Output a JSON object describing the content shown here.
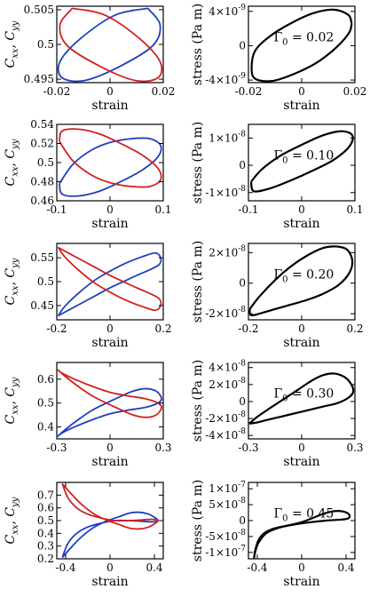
{
  "chart_data": [
    {
      "type": "line",
      "panel": "cxx-cyy",
      "row": 1,
      "xlabel": "strain",
      "ylabel": "C_xx, C_yy",
      "xlim": [
        -0.02,
        0.02
      ],
      "ylim": [
        0.4945,
        0.5055
      ],
      "xticks": [
        -0.02,
        0,
        0.02
      ],
      "xtick_labels": [
        "-0.02",
        "0",
        "0.02"
      ],
      "yticks": [
        0.495,
        0.5,
        0.505
      ],
      "ytick_labels": [
        "0.495",
        "0.5",
        "0.505"
      ],
      "series": [
        {
          "color": "#1f3fbf",
          "x": [
            0.0142,
            0.0188,
            0.016,
            0.0035,
            -0.0095,
            -0.018,
            -0.0188,
            -0.0112,
            0.0018,
            0.0142
          ],
          "y": [
            0.5052,
            0.5028,
            0.4998,
            0.4968,
            0.4948,
            0.4952,
            0.4975,
            0.5008,
            0.5042,
            0.5052
          ]
        },
        {
          "color": "#d32020",
          "x": [
            -0.0142,
            -0.0188,
            -0.016,
            -0.0035,
            0.0095,
            0.018,
            0.0188,
            0.0112,
            -0.0018,
            -0.0142
          ],
          "y": [
            0.5052,
            0.5028,
            0.4998,
            0.4968,
            0.4948,
            0.4952,
            0.4975,
            0.5008,
            0.5042,
            0.5052
          ]
        }
      ]
    },
    {
      "type": "line",
      "panel": "stress",
      "row": 1,
      "xlabel": "strain",
      "ylabel": "stress (Pa m)",
      "xlim": [
        -0.02,
        0.02
      ],
      "ylim": [
        -4.3e-09,
        4.6e-09
      ],
      "xticks": [
        -0.02,
        0,
        0.02
      ],
      "xtick_labels": [
        "-0.02",
        "0",
        "0.02"
      ],
      "yticks": [
        -4e-09,
        0,
        4e-09
      ],
      "ytick_labels": [
        [
          "-4×10",
          "-9"
        ],
        [
          "0",
          ""
        ],
        [
          "4×10",
          "-9"
        ]
      ],
      "annotation": {
        "text": "Γ",
        "sub": "0",
        "value": " = 0.02"
      },
      "series": [
        {
          "color": "#000000",
          "x": [
            0.0188,
            0.0175,
            0.012,
            0.0045,
            -0.0035,
            -0.0115,
            -0.0175,
            -0.0188,
            -0.0172,
            -0.011,
            -0.003,
            0.0055,
            0.013,
            0.0178,
            0.0188
          ],
          "y": [
            2.6e-09,
            3.6e-09,
            4.2e-09,
            3.8e-09,
            2.7e-09,
            1.2e-09,
            -6e-10,
            -2.8e-09,
            -3.9e-09,
            -4.1e-09,
            -3.3e-09,
            -2e-09,
            -2e-10,
            1.5e-09,
            2.6e-09
          ]
        }
      ]
    },
    {
      "type": "line",
      "panel": "cxx-cyy",
      "row": 2,
      "xlabel": "strain",
      "ylabel": "C_xx, C_yy",
      "xlim": [
        -0.1,
        0.1
      ],
      "ylim": [
        0.46,
        0.54
      ],
      "xticks": [
        -0.1,
        0,
        0.1
      ],
      "xtick_labels": [
        "-0.1",
        "0",
        "0.1"
      ],
      "yticks": [
        0.46,
        0.48,
        0.5,
        0.52,
        0.54
      ],
      "ytick_labels": [
        "0.46",
        "0.48",
        "0.5",
        "0.52",
        "0.54"
      ],
      "series": [
        {
          "color": "#1f3fbf",
          "x": [
            -0.095,
            -0.07,
            -0.035,
            0.0,
            0.04,
            0.075,
            0.095,
            0.09,
            0.06,
            0.02,
            -0.02,
            -0.06,
            -0.09,
            -0.095
          ],
          "y": [
            0.478,
            0.498,
            0.513,
            0.521,
            0.525,
            0.525,
            0.518,
            0.506,
            0.492,
            0.48,
            0.47,
            0.465,
            0.467,
            0.478
          ]
        },
        {
          "color": "#d32020",
          "x": [
            -0.095,
            -0.07,
            -0.035,
            0.0,
            0.04,
            0.075,
            0.095,
            0.09,
            0.06,
            0.02,
            -0.02,
            -0.06,
            -0.09,
            -0.095
          ],
          "y": [
            0.522,
            0.502,
            0.487,
            0.479,
            0.475,
            0.475,
            0.482,
            0.494,
            0.508,
            0.52,
            0.53,
            0.535,
            0.533,
            0.522
          ]
        }
      ]
    },
    {
      "type": "line",
      "panel": "stress",
      "row": 2,
      "xlabel": "strain",
      "ylabel": "stress (Pa m)",
      "xlim": [
        -0.1,
        0.1
      ],
      "ylim": [
        -1.3e-08,
        1.5e-08
      ],
      "xticks": [
        -0.1,
        0,
        0.1
      ],
      "xtick_labels": [
        "-0.1",
        "0",
        "0.1"
      ],
      "yticks": [
        -1e-08,
        0,
        1e-08
      ],
      "ytick_labels": [
        [
          "-1×10",
          "-8"
        ],
        [
          "0",
          ""
        ],
        [
          "1×10",
          "-8"
        ]
      ],
      "annotation": {
        "text": "Γ",
        "sub": "0",
        "value": " = 0.10"
      },
      "series": [
        {
          "color": "#000000",
          "x": [
            -0.095,
            -0.075,
            -0.04,
            0.0,
            0.04,
            0.075,
            0.095,
            0.09,
            0.06,
            0.02,
            -0.02,
            -0.06,
            -0.09,
            -0.095
          ],
          "y": [
            -6e-09,
            -1.5e-09,
            3.5e-09,
            7.5e-09,
            1.1e-08,
            1.25e-08,
            1.1e-08,
            7e-09,
            2e-09,
            -2e-09,
            -5.5e-09,
            -8.5e-09,
            -9.5e-09,
            -6e-09
          ]
        }
      ]
    },
    {
      "type": "line",
      "panel": "cxx-cyy",
      "row": 3,
      "xlabel": "strain",
      "ylabel": "C_xx, C_yy",
      "xlim": [
        -0.2,
        0.2
      ],
      "ylim": [
        0.42,
        0.58
      ],
      "xticks": [
        -0.2,
        0,
        0.2
      ],
      "xtick_labels": [
        "-0.2",
        "0",
        "0.2"
      ],
      "yticks": [
        0.45,
        0.5,
        0.55
      ],
      "ytick_labels": [
        "0.45",
        "0.5",
        "0.55"
      ],
      "series": [
        {
          "color": "#1f3fbf",
          "x": [
            -0.195,
            -0.17,
            -0.12,
            -0.06,
            0.0,
            0.06,
            0.12,
            0.17,
            0.19,
            0.185,
            0.15,
            0.1,
            0.05,
            0.0,
            -0.05,
            -0.1,
            -0.15,
            -0.19,
            -0.195
          ],
          "y": [
            0.428,
            0.448,
            0.475,
            0.502,
            0.522,
            0.539,
            0.552,
            0.56,
            0.55,
            0.536,
            0.525,
            0.513,
            0.5,
            0.487,
            0.472,
            0.457,
            0.442,
            0.43,
            0.428
          ]
        },
        {
          "color": "#d32020",
          "x": [
            -0.195,
            -0.17,
            -0.12,
            -0.06,
            0.0,
            0.06,
            0.12,
            0.17,
            0.19,
            0.185,
            0.15,
            0.1,
            0.05,
            0.0,
            -0.05,
            -0.1,
            -0.15,
            -0.19,
            -0.195
          ],
          "y": [
            0.572,
            0.552,
            0.525,
            0.498,
            0.478,
            0.461,
            0.448,
            0.44,
            0.45,
            0.464,
            0.475,
            0.487,
            0.5,
            0.513,
            0.528,
            0.543,
            0.558,
            0.57,
            0.572
          ]
        }
      ]
    },
    {
      "type": "line",
      "panel": "stress",
      "row": 3,
      "xlabel": "strain",
      "ylabel": "stress (Pa m)",
      "xlim": [
        -0.2,
        0.2
      ],
      "ylim": [
        -2.4e-08,
        2.6e-08
      ],
      "xticks": [
        -0.2,
        0,
        0.2
      ],
      "xtick_labels": [
        "-0.2",
        "0",
        "0.2"
      ],
      "yticks": [
        -2e-08,
        0,
        2e-08
      ],
      "ytick_labels": [
        [
          "-2×10",
          "-8"
        ],
        [
          "0",
          ""
        ],
        [
          "2×10",
          "-8"
        ]
      ],
      "annotation": {
        "text": "Γ",
        "sub": "0",
        "value": " = 0.20"
      },
      "series": [
        {
          "color": "#000000",
          "x": [
            -0.195,
            -0.16,
            -0.1,
            -0.04,
            0.02,
            0.08,
            0.13,
            0.17,
            0.19,
            0.18,
            0.14,
            0.08,
            0.02,
            -0.04,
            -0.1,
            -0.15,
            -0.19,
            -0.195
          ],
          "y": [
            -1.7e-08,
            -9e-09,
            2e-09,
            1.1e-08,
            1.8e-08,
            2.3e-08,
            2.4e-08,
            2.2e-08,
            1.5e-08,
            7e-09,
            -1e-09,
            -7e-09,
            -1.1e-08,
            -1.4e-08,
            -1.7e-08,
            -1.95e-08,
            -2.1e-08,
            -1.7e-08
          ]
        }
      ]
    },
    {
      "type": "line",
      "panel": "cxx-cyy",
      "row": 4,
      "xlabel": "strain",
      "ylabel": "C_xx, C_yy",
      "xlim": [
        -0.3,
        0.3
      ],
      "ylim": [
        0.35,
        0.67
      ],
      "xticks": [
        -0.3,
        0,
        0.3
      ],
      "xtick_labels": [
        "-0.3",
        "0",
        "0.3"
      ],
      "yticks": [
        0.4,
        0.5,
        0.6
      ],
      "ytick_labels": [
        "0.4",
        "0.5",
        "0.6"
      ],
      "series": [
        {
          "color": "#1f3fbf",
          "x": [
            -0.295,
            -0.25,
            -0.18,
            -0.1,
            -0.02,
            0.06,
            0.13,
            0.2,
            0.26,
            0.29,
            0.27,
            0.2,
            0.1,
            0.0,
            -0.1,
            -0.2,
            -0.27,
            -0.295
          ],
          "y": [
            0.36,
            0.39,
            0.43,
            0.47,
            0.5,
            0.528,
            0.55,
            0.56,
            0.55,
            0.52,
            0.5,
            0.482,
            0.47,
            0.455,
            0.43,
            0.4,
            0.375,
            0.36
          ]
        },
        {
          "color": "#d32020",
          "x": [
            -0.295,
            -0.25,
            -0.18,
            -0.1,
            -0.02,
            0.06,
            0.13,
            0.2,
            0.26,
            0.29,
            0.27,
            0.2,
            0.1,
            0.0,
            -0.1,
            -0.2,
            -0.27,
            -0.295
          ],
          "y": [
            0.64,
            0.61,
            0.57,
            0.53,
            0.5,
            0.472,
            0.45,
            0.44,
            0.45,
            0.48,
            0.5,
            0.518,
            0.53,
            0.545,
            0.57,
            0.6,
            0.625,
            0.64
          ]
        }
      ]
    },
    {
      "type": "line",
      "panel": "stress",
      "row": 4,
      "xlabel": "strain",
      "ylabel": "stress (Pa m)",
      "xlim": [
        -0.3,
        0.3
      ],
      "ylim": [
        -4.4e-08,
        4.6e-08
      ],
      "xticks": [
        -0.3,
        0,
        0.3
      ],
      "xtick_labels": [
        "-0.3",
        "0",
        "0.3"
      ],
      "yticks": [
        -4e-08,
        -2e-08,
        0,
        2e-08,
        4e-08
      ],
      "ytick_labels": [
        [
          "-4×10",
          "-8"
        ],
        [
          "-2×10",
          "-8"
        ],
        [
          "0",
          ""
        ],
        [
          "2×10",
          "-8"
        ],
        [
          "4×10",
          "-8"
        ]
      ],
      "annotation": {
        "text": "Γ",
        "sub": "0",
        "value": " = 0.30"
      },
      "series": [
        {
          "color": "#000000",
          "x": [
            -0.295,
            -0.25,
            -0.18,
            -0.1,
            -0.02,
            0.06,
            0.12,
            0.18,
            0.24,
            0.28,
            0.29,
            0.26,
            0.2,
            0.12,
            0.04,
            -0.04,
            -0.12,
            -0.2,
            -0.26,
            -0.295
          ],
          "y": [
            -2.6e-08,
            -1.8e-08,
            -8e-09,
            3e-09,
            1.4e-08,
            2.5e-08,
            3.1e-08,
            3.3e-08,
            2.9e-08,
            2e-08,
            1.1e-08,
            4e-09,
            -2e-09,
            -6e-09,
            -1e-08,
            -1.4e-08,
            -1.8e-08,
            -2.2e-08,
            -2.5e-08,
            -2.6e-08
          ]
        }
      ]
    },
    {
      "type": "line",
      "panel": "cxx-cyy",
      "row": 5,
      "xlabel": "strain",
      "ylabel": "C_xx, C_yy",
      "xlim": [
        -0.48,
        0.48
      ],
      "ylim": [
        0.2,
        0.8
      ],
      "xticks": [
        -0.4,
        0,
        0.4
      ],
      "xtick_labels": [
        "-0.4",
        "0",
        "0.4"
      ],
      "yticks": [
        0.2,
        0.3,
        0.4,
        0.5,
        0.6,
        0.7
      ],
      "ytick_labels": [
        "0.2",
        "0.3",
        "0.4",
        "0.5",
        "0.6",
        "0.7"
      ],
      "series": [
        {
          "color": "#1f3fbf",
          "x": [
            -0.43,
            -0.36,
            -0.26,
            -0.14,
            -0.02,
            0.08,
            0.18,
            0.27,
            0.35,
            0.41,
            0.43,
            0.38,
            0.28,
            0.16,
            0.04,
            -0.08,
            -0.2,
            -0.3,
            -0.38,
            -0.43
          ],
          "y": [
            0.21,
            0.28,
            0.37,
            0.45,
            0.5,
            0.53,
            0.56,
            0.565,
            0.55,
            0.52,
            0.5,
            0.49,
            0.495,
            0.5,
            0.5,
            0.48,
            0.45,
            0.4,
            0.32,
            0.21
          ]
        },
        {
          "color": "#d32020",
          "x": [
            -0.43,
            -0.36,
            -0.26,
            -0.14,
            -0.02,
            0.08,
            0.18,
            0.27,
            0.35,
            0.41,
            0.43,
            0.38,
            0.28,
            0.16,
            0.04,
            -0.08,
            -0.2,
            -0.3,
            -0.38,
            -0.43
          ],
          "y": [
            0.79,
            0.72,
            0.63,
            0.55,
            0.5,
            0.47,
            0.44,
            0.435,
            0.45,
            0.48,
            0.5,
            0.51,
            0.505,
            0.5,
            0.5,
            0.52,
            0.55,
            0.6,
            0.68,
            0.79
          ]
        }
      ]
    },
    {
      "type": "line",
      "panel": "stress",
      "row": 5,
      "xlabel": "strain",
      "ylabel": "stress (Pa m)",
      "xlim": [
        -0.48,
        0.48
      ],
      "ylim": [
        -1.2e-07,
        1.2e-07
      ],
      "xticks": [
        -0.4,
        0,
        0.4
      ],
      "xtick_labels": [
        "-0.4",
        "0",
        "0.4"
      ],
      "yticks": [
        -1e-07,
        -5e-08,
        0,
        5e-08,
        1e-07
      ],
      "ytick_labels": [
        [
          "-1×10",
          "-7"
        ],
        [
          "-5×10",
          "-8"
        ],
        [
          "0",
          ""
        ],
        [
          "5×10",
          "-8"
        ],
        [
          "1×10",
          "-7"
        ]
      ],
      "annotation": {
        "text": "Γ",
        "sub": "0",
        "value": " = 0.45"
      },
      "series": [
        {
          "color": "#000000",
          "x": [
            -0.43,
            -0.42,
            -0.39,
            -0.34,
            -0.25,
            -0.12,
            0.0,
            0.1,
            0.2,
            0.3,
            0.38,
            0.43,
            0.42,
            0.35,
            0.22,
            0.08,
            -0.06,
            -0.2,
            -0.32,
            -0.39,
            -0.42,
            -0.43
          ],
          "y": [
            -1.2e-07,
            -9.5e-08,
            -6.2e-08,
            -4e-08,
            -2.5e-08,
            -1.5e-08,
            -5e-09,
            8e-09,
            2.2e-08,
            3e-08,
            2.8e-08,
            1.8e-08,
            7e-09,
            3e-09,
            0.0,
            -5e-09,
            -1.2e-08,
            -2.2e-08,
            -4e-08,
            -7e-08,
            -1e-07,
            -1.2e-07
          ]
        }
      ]
    }
  ]
}
